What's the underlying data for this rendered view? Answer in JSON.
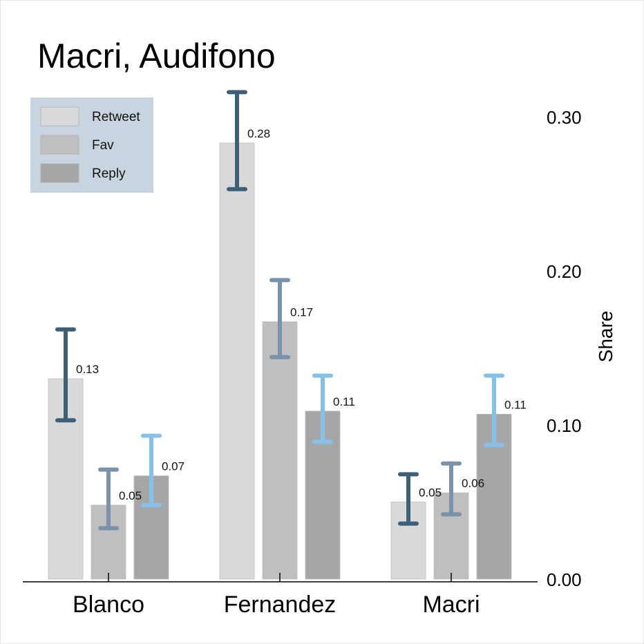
{
  "chart_data": {
    "type": "bar",
    "title": "Macri, Audifono",
    "ylabel": "Share",
    "xlabel": "",
    "ylim": [
      0,
      0.3
    ],
    "yticks": [
      "0.00",
      "0.10",
      "0.20",
      "0.30"
    ],
    "ytick_values": [
      0,
      0.1,
      0.2,
      0.3
    ],
    "y_axis_side": "right",
    "grid": false,
    "legend_position": "top-left",
    "categories": [
      "Blanco",
      "Fernandez",
      "Macri"
    ],
    "series": [
      {
        "name": "Retweet",
        "color": "#d9d9d9",
        "error_color": "#3d6079",
        "values": [
          0.13,
          0.283,
          0.05
        ],
        "labels": [
          "0.13",
          "0.28",
          "0.05"
        ],
        "err_low": [
          0.103,
          0.253,
          0.036
        ],
        "err_high": [
          0.162,
          0.316,
          0.068
        ]
      },
      {
        "name": "Fav",
        "color": "#bfbfbf",
        "error_color": "#7a92aa",
        "values": [
          0.048,
          0.167,
          0.056
        ],
        "labels": [
          "0.05",
          "0.17",
          "0.06"
        ],
        "err_low": [
          0.033,
          0.144,
          0.042
        ],
        "err_high": [
          0.071,
          0.194,
          0.075
        ]
      },
      {
        "name": "Reply",
        "color": "#a6a6a6",
        "error_color": "#85c1e9",
        "values": [
          0.067,
          0.109,
          0.107
        ],
        "labels": [
          "0.07",
          "0.11",
          "0.11"
        ],
        "err_low": [
          0.048,
          0.089,
          0.087
        ],
        "err_high": [
          0.093,
          0.132,
          0.132
        ]
      }
    ],
    "legend_background": "#c8d4df"
  }
}
